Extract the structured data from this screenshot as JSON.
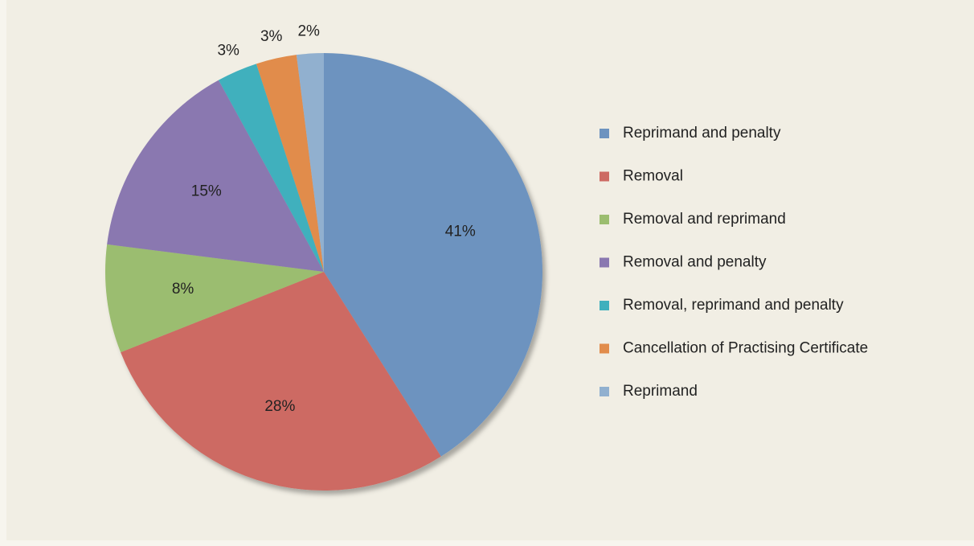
{
  "chart_data": {
    "type": "pie",
    "categories": [
      "Reprimand and penalty",
      "Removal",
      "Removal and reprimand",
      "Removal and penalty",
      "Removal, reprimand and penalty",
      "Cancellation of Practising Certificate",
      "Reprimand"
    ],
    "values": [
      41,
      28,
      8,
      15,
      3,
      3,
      2
    ],
    "value_labels": [
      "41%",
      "28%",
      "8%",
      "15%",
      "3%",
      "3%",
      "2%"
    ],
    "colors": [
      "#6d93bf",
      "#cd6a63",
      "#9bbd6f",
      "#8a78b0",
      "#3fb0bd",
      "#e18c4b",
      "#91b0cf"
    ],
    "legend": "right"
  }
}
